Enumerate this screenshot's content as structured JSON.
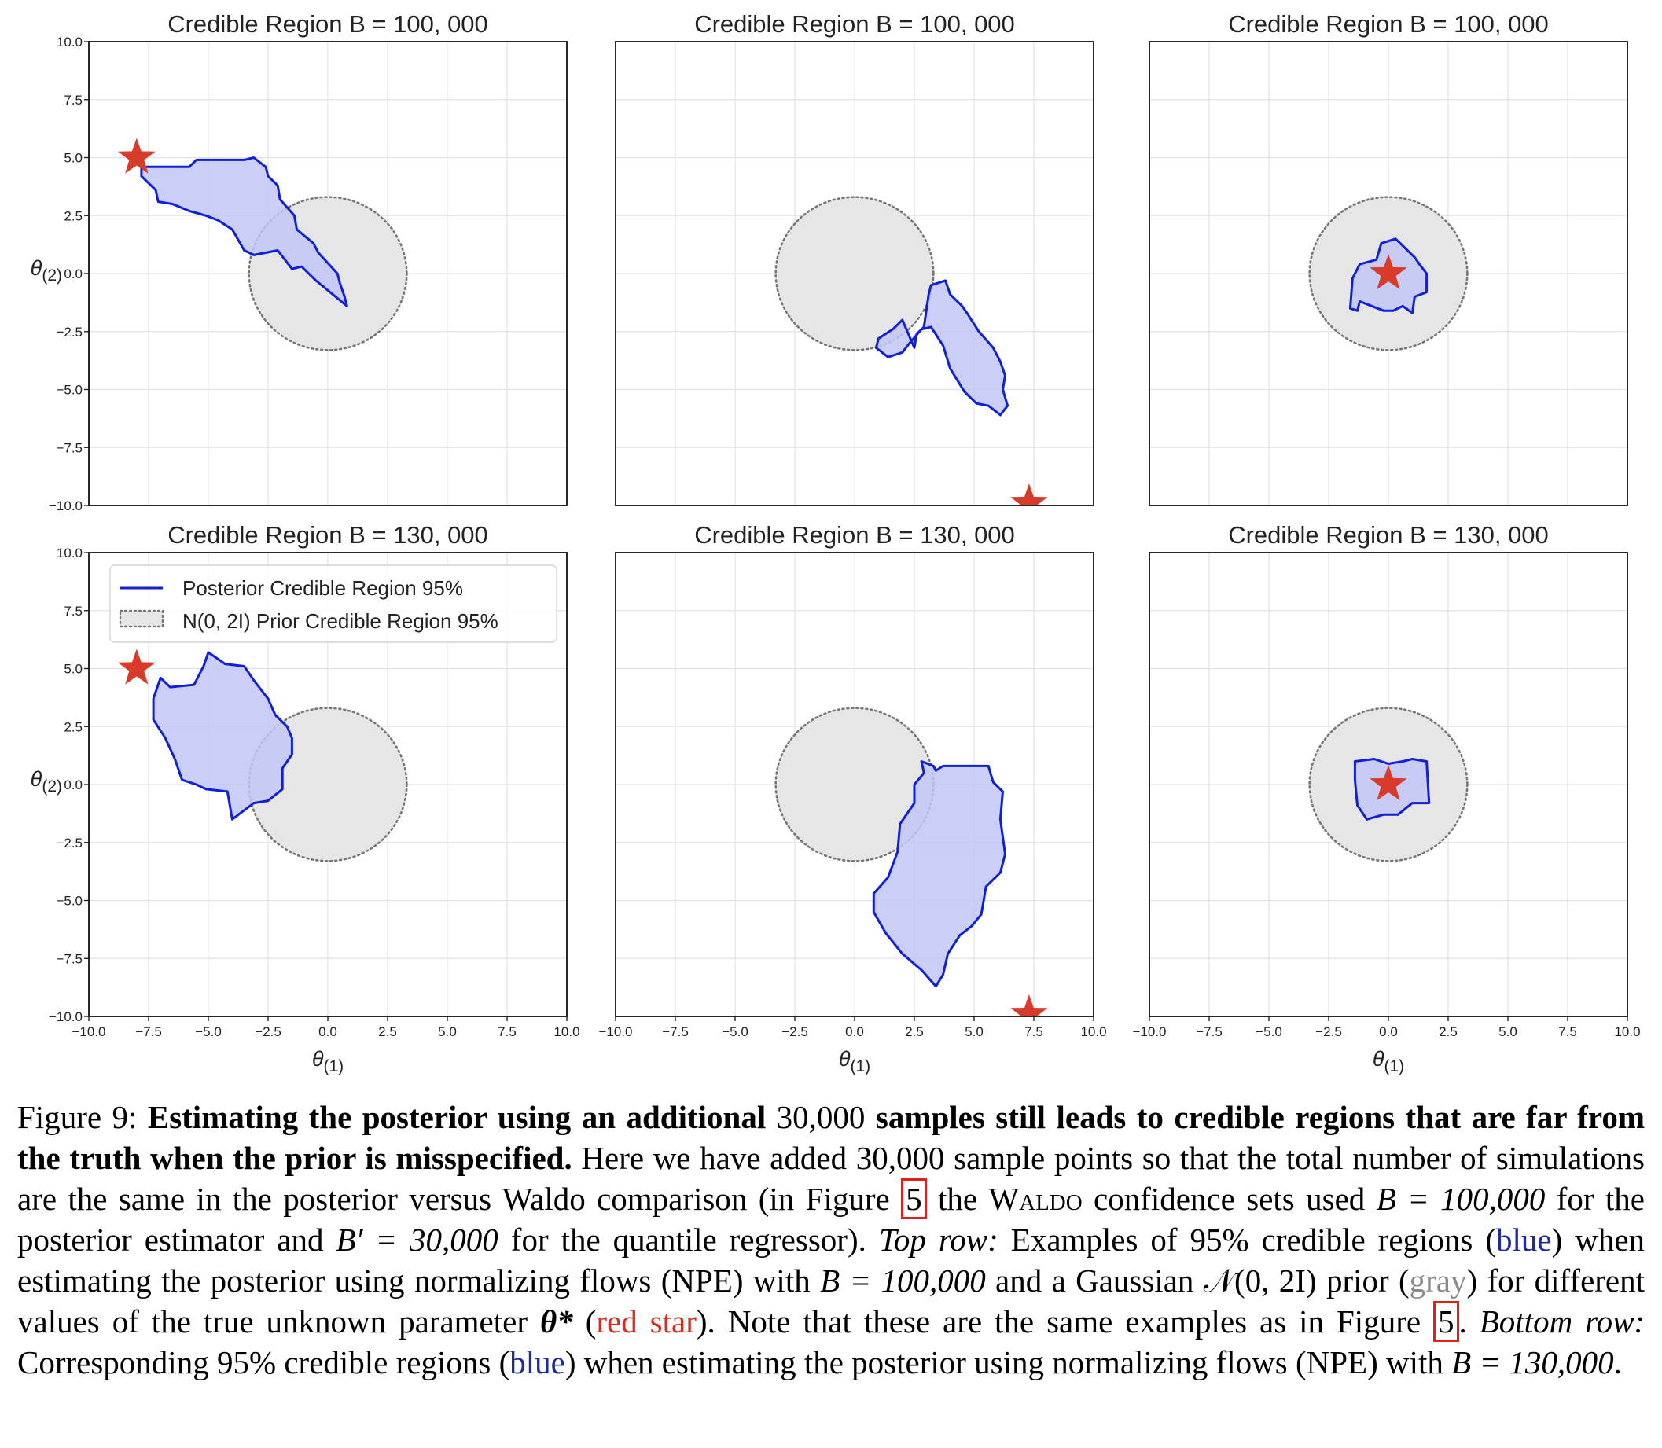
{
  "chart_data": {
    "type": "scatter",
    "rows": 2,
    "cols": 3,
    "xlim": [
      -10,
      10
    ],
    "ylim": [
      -10,
      10
    ],
    "xticks": [
      "−10.0",
      "−7.5",
      "−5.0",
      "−2.5",
      "0.0",
      "2.5",
      "5.0",
      "7.5",
      "10.0"
    ],
    "yticks": [
      "−10.0",
      "−7.5",
      "−5.0",
      "−2.5",
      "0.0",
      "2.5",
      "5.0",
      "7.5",
      "10.0"
    ],
    "xlabel": "θ(1)",
    "ylabel": "θ(2)",
    "grid": true,
    "legend_position": "top-left",
    "legend": {
      "posterior_label": "Posterior Credible Region 95%",
      "prior_label": "N(0, 2I) Prior Credible Region 95%"
    },
    "colors": {
      "posterior_fill": "#c2c6f4",
      "posterior_edge": "#1020d8",
      "prior_fill": "#e6e6e6",
      "prior_edge": "#777777",
      "star": "#d93b2b"
    },
    "prior_circle": {
      "center": [
        0,
        0
      ],
      "radius": 3.3
    },
    "panels": [
      {
        "title": "Credible Region B = 100, 000",
        "star": [
          -8,
          5
        ],
        "region": [
          [
            -7.8,
            4.6
          ],
          [
            -5.8,
            4.6
          ],
          [
            -5.5,
            4.9
          ],
          [
            -3.5,
            4.9
          ],
          [
            -3.1,
            5.0
          ],
          [
            -2.6,
            4.6
          ],
          [
            -2.5,
            4.2
          ],
          [
            -2.1,
            3.8
          ],
          [
            -2.0,
            3.2
          ],
          [
            -1.4,
            2.5
          ],
          [
            -1.3,
            1.9
          ],
          [
            -0.6,
            1.3
          ],
          [
            -0.4,
            0.9
          ],
          [
            0.4,
            0.0
          ],
          [
            0.5,
            -0.4
          ],
          [
            0.7,
            -1.0
          ],
          [
            0.8,
            -1.4
          ],
          [
            -0.5,
            -0.3
          ],
          [
            -1.1,
            0.3
          ],
          [
            -1.5,
            0.2
          ],
          [
            -2.1,
            1.0
          ],
          [
            -3.1,
            0.8
          ],
          [
            -3.5,
            1.0
          ],
          [
            -4.0,
            1.9
          ],
          [
            -4.6,
            2.3
          ],
          [
            -5.1,
            2.5
          ],
          [
            -5.8,
            2.7
          ],
          [
            -6.5,
            3.0
          ],
          [
            -7.1,
            3.1
          ],
          [
            -7.2,
            3.6
          ],
          [
            -7.8,
            4.2
          ]
        ]
      },
      {
        "title": "Credible Region B = 100, 000",
        "star": [
          7.3,
          -9.9
        ],
        "region": [
          [
            2.5,
            -3.2
          ],
          [
            2.6,
            -2.6
          ],
          [
            2.9,
            -2.3
          ],
          [
            3.0,
            -1.6
          ],
          [
            3.1,
            -0.9
          ],
          [
            3.2,
            -0.5
          ],
          [
            3.8,
            -0.3
          ],
          [
            4.0,
            -0.9
          ],
          [
            4.5,
            -1.4
          ],
          [
            4.7,
            -1.7
          ],
          [
            5.2,
            -2.5
          ],
          [
            5.8,
            -3.2
          ],
          [
            6.1,
            -3.8
          ],
          [
            6.3,
            -4.4
          ],
          [
            6.2,
            -5.0
          ],
          [
            6.4,
            -5.7
          ],
          [
            6.1,
            -6.1
          ],
          [
            5.6,
            -5.7
          ],
          [
            5.1,
            -5.6
          ],
          [
            4.6,
            -5.1
          ],
          [
            4.0,
            -4.1
          ],
          [
            3.7,
            -3.1
          ],
          [
            3.2,
            -2.3
          ],
          [
            2.8,
            -2.4
          ],
          [
            2.3,
            -3.0
          ],
          [
            2.0,
            -3.4
          ],
          [
            1.4,
            -3.6
          ],
          [
            0.9,
            -3.2
          ],
          [
            1.0,
            -2.8
          ],
          [
            1.6,
            -2.4
          ],
          [
            2.0,
            -2.0
          ]
        ]
      },
      {
        "title": "Credible Region B = 100, 000",
        "star": [
          0,
          0
        ],
        "region": [
          [
            -1.6,
            -1.5
          ],
          [
            -1.5,
            -0.2
          ],
          [
            -1.2,
            0.4
          ],
          [
            -0.5,
            0.6
          ],
          [
            -0.3,
            1.3
          ],
          [
            0.3,
            1.5
          ],
          [
            0.6,
            1.2
          ],
          [
            1.1,
            0.7
          ],
          [
            1.3,
            0.4
          ],
          [
            1.6,
            0.0
          ],
          [
            1.6,
            -0.8
          ],
          [
            1.1,
            -1.0
          ],
          [
            1.0,
            -1.7
          ],
          [
            0.6,
            -1.4
          ],
          [
            0.2,
            -1.6
          ],
          [
            -0.2,
            -1.6
          ],
          [
            -0.7,
            -1.4
          ],
          [
            -1.2,
            -1.2
          ],
          [
            -1.3,
            -1.6
          ]
        ]
      },
      {
        "title": "Credible Region B = 130, 000",
        "star": [
          -8,
          5
        ],
        "region": [
          [
            -7.2,
            4.0
          ],
          [
            -7.0,
            4.6
          ],
          [
            -6.6,
            4.2
          ],
          [
            -5.6,
            4.3
          ],
          [
            -5.2,
            5.1
          ],
          [
            -5.0,
            5.7
          ],
          [
            -4.3,
            5.2
          ],
          [
            -3.5,
            5.1
          ],
          [
            -3.1,
            4.5
          ],
          [
            -2.5,
            3.7
          ],
          [
            -2.2,
            3.0
          ],
          [
            -1.7,
            2.5
          ],
          [
            -1.5,
            2.0
          ],
          [
            -1.5,
            1.3
          ],
          [
            -1.9,
            0.7
          ],
          [
            -1.9,
            -0.2
          ],
          [
            -2.5,
            -0.7
          ],
          [
            -3.1,
            -0.8
          ],
          [
            -4.0,
            -1.5
          ],
          [
            -4.2,
            -0.3
          ],
          [
            -5.1,
            -0.2
          ],
          [
            -5.5,
            0.0
          ],
          [
            -6.1,
            0.2
          ],
          [
            -6.4,
            1.1
          ],
          [
            -6.8,
            2.0
          ],
          [
            -7.3,
            2.8
          ],
          [
            -7.3,
            3.7
          ]
        ]
      },
      {
        "title": "Credible Region B = 130, 000",
        "star": [
          7.3,
          -9.9
        ],
        "region": [
          [
            2.5,
            -0.8
          ],
          [
            2.5,
            0.0
          ],
          [
            2.9,
            0.5
          ],
          [
            2.8,
            1.0
          ],
          [
            3.3,
            0.8
          ],
          [
            3.4,
            0.6
          ],
          [
            3.7,
            0.8
          ],
          [
            5.6,
            0.8
          ],
          [
            5.8,
            0.1
          ],
          [
            6.2,
            -0.3
          ],
          [
            6.1,
            -1.5
          ],
          [
            6.3,
            -3.0
          ],
          [
            6.1,
            -3.8
          ],
          [
            5.5,
            -4.4
          ],
          [
            5.3,
            -5.6
          ],
          [
            4.9,
            -6.1
          ],
          [
            4.4,
            -6.5
          ],
          [
            3.9,
            -7.3
          ],
          [
            3.7,
            -8.2
          ],
          [
            3.4,
            -8.7
          ],
          [
            2.8,
            -8.0
          ],
          [
            2.0,
            -7.3
          ],
          [
            1.3,
            -6.4
          ],
          [
            0.8,
            -5.5
          ],
          [
            0.8,
            -4.7
          ],
          [
            1.4,
            -4.0
          ],
          [
            1.8,
            -2.9
          ],
          [
            1.9,
            -1.7
          ],
          [
            2.3,
            -1.1
          ]
        ]
      },
      {
        "title": "Credible Region B = 130, 000",
        "star": [
          0,
          0
        ],
        "region": [
          [
            -1.3,
            -0.9
          ],
          [
            -1.4,
            0.2
          ],
          [
            -1.4,
            1.0
          ],
          [
            -0.6,
            1.1
          ],
          [
            0.0,
            0.9
          ],
          [
            0.6,
            1.0
          ],
          [
            1.0,
            1.1
          ],
          [
            1.6,
            1.0
          ],
          [
            1.7,
            -0.8
          ],
          [
            1.0,
            -0.8
          ],
          [
            0.4,
            -1.3
          ],
          [
            -0.2,
            -1.3
          ],
          [
            -0.9,
            -1.5
          ]
        ]
      }
    ]
  },
  "caption": {
    "figure_label": "Figure 9:",
    "bold_1": "Estimating the posterior using an additional",
    "num_1": "30,000",
    "bold_2": "samples still leads to credible regions that are far from the truth when the prior is misspecified.",
    "text_1": "Here we have added 30,000 sample points so that the total number of simulations are the same in the posterior versus Waldo comparison (in Figure",
    "ref_1": "5",
    "text_2": "the",
    "waldo": "Waldo",
    "text_3": "confidence sets used",
    "b_eq_1": "B = 100,000",
    "text_4": "for the posterior estimator and",
    "bprime_eq": "B′ = 30,000",
    "text_5": "for the quantile regressor).",
    "top_row": "Top row:",
    "text_6": "Examples of 95% credible regions (",
    "blue_1": "blue",
    "text_7": ") when estimating the posterior using normalizing flows (NPE) with",
    "b_eq_2": "B = 100,000",
    "text_8": "and a Gaussian",
    "normal": "𝒩(0, 2I)",
    "text_9": "prior (",
    "gray": "gray",
    "text_10": ") for different values of the true unknown parameter",
    "theta_star": "θ*",
    "text_11": "(",
    "red_star": "red star",
    "text_12": "). Note that these are the same examples as in Figure",
    "ref_2": "5",
    "text_13": ".",
    "bottom_row": "Bottom row:",
    "text_14": "Corresponding 95% credible regions (",
    "blue_2": "blue",
    "text_15": ") when estimating the posterior using normalizing flows (NPE) with",
    "b_eq_3": "B = 130,000",
    "text_16": "."
  }
}
